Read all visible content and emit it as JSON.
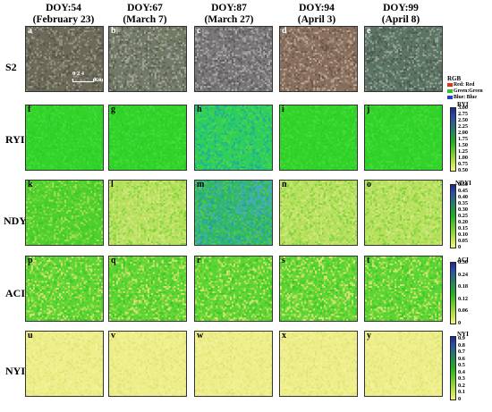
{
  "columns": [
    {
      "doy": "DOY:54",
      "date": "(February 23)"
    },
    {
      "doy": "DOY:67",
      "date": "(March 7)"
    },
    {
      "doy": "DOY:87",
      "date": "(March 27)"
    },
    {
      "doy": "DOY:94",
      "date": "(April 3)"
    },
    {
      "doy": "DOY:99",
      "date": "(April 8)"
    }
  ],
  "rows": [
    {
      "label": "S2",
      "letters": [
        "a",
        "b",
        "c",
        "d",
        "e"
      ]
    },
    {
      "label": "RYI",
      "letters": [
        "f",
        "g",
        "h",
        "i",
        "j"
      ]
    },
    {
      "label": "NDYI",
      "letters": [
        "k",
        "l",
        "m",
        "n",
        "o"
      ]
    },
    {
      "label": "ACI",
      "letters": [
        "p",
        "q",
        "r",
        "s",
        "t"
      ]
    },
    {
      "label": "NYI",
      "letters": [
        "u",
        "v",
        "w",
        "x",
        "y"
      ]
    }
  ],
  "scale_bar": {
    "ticks": "0  2  4",
    "unit": "Km"
  },
  "legends": {
    "rgb": {
      "title": "RGB",
      "items": [
        {
          "label": "Red: Red",
          "color": "#e03020"
        },
        {
          "label": "Green:Green",
          "color": "#30c030"
        },
        {
          "label": "Blue: Blue",
          "color": "#2040d0"
        }
      ]
    },
    "ryi": {
      "title": "RYI",
      "ticks": [
        "3.00",
        "2.75",
        "2.50",
        "2.25",
        "2.00",
        "1.75",
        "1.50",
        "1.25",
        "1.00",
        "0.75",
        "0.50"
      ]
    },
    "ndyi": {
      "title": "NDYI",
      "ticks": [
        "0.50",
        "0.45",
        "0.40",
        "0.35",
        "0.30",
        "0.25",
        "0.20",
        "0.15",
        "0.10",
        "0.05",
        "0"
      ]
    },
    "aci": {
      "title": "ACI",
      "ticks": [
        "0.30",
        "0.24",
        "0.18",
        "0.12",
        "0.06",
        "0"
      ]
    },
    "nyi": {
      "title": "NYI",
      "ticks": [
        "0.9",
        "0.8",
        "0.7",
        "0.6",
        "0.5",
        "0.4",
        "0.3",
        "0.2",
        "0.1",
        "0"
      ]
    }
  },
  "colors": {
    "ramp_high": "#1a2a8c",
    "ramp_mid": "#22b022",
    "ramp_low": "#f5f57a",
    "bright_green": "#2ad42a",
    "pale_yellow": "#f0f08a"
  }
}
